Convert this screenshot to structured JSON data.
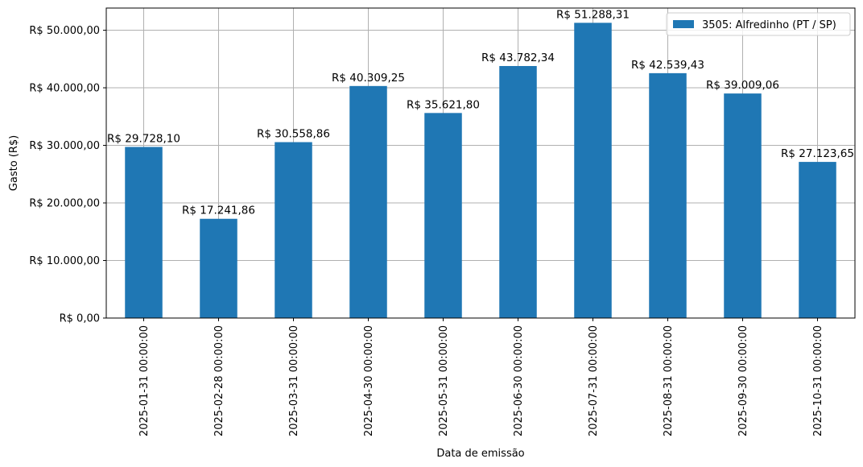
{
  "chart_data": {
    "type": "bar",
    "categories": [
      "2025-01-31 00:00:00",
      "2025-02-28 00:00:00",
      "2025-03-31 00:00:00",
      "2025-04-30 00:00:00",
      "2025-05-31 00:00:00",
      "2025-06-30 00:00:00",
      "2025-07-31 00:00:00",
      "2025-08-31 00:00:00",
      "2025-09-30 00:00:00",
      "2025-10-31 00:00:00"
    ],
    "series": [
      {
        "name": "3505: Alfredinho (PT / SP)",
        "color": "#1f77b4",
        "values": [
          29728.1,
          17241.86,
          30558.86,
          40309.25,
          35621.8,
          43782.34,
          51288.31,
          42539.43,
          39009.06,
          27123.65
        ],
        "labels": [
          "R$ 29.728,10",
          "R$ 17.241,86",
          "R$ 30.558,86",
          "R$ 40.309,25",
          "R$ 35.621,80",
          "R$ 43.782,34",
          "R$ 51.288,31",
          "R$ 42.539,43",
          "R$ 39.009,06",
          "R$ 27.123,65"
        ]
      }
    ],
    "title": "",
    "xlabel": "Data de emissão",
    "ylabel": "Gasto (R$)",
    "ylim": [
      0,
      53852.73
    ],
    "yticks": [
      0,
      10000,
      20000,
      30000,
      40000,
      50000
    ],
    "ytick_labels": [
      "R$ 0,00",
      "R$ 10.000,00",
      "R$ 20.000,00",
      "R$ 30.000,00",
      "R$ 40.000,00",
      "R$ 50.000,00"
    ],
    "grid": true,
    "legend": "top-right"
  }
}
